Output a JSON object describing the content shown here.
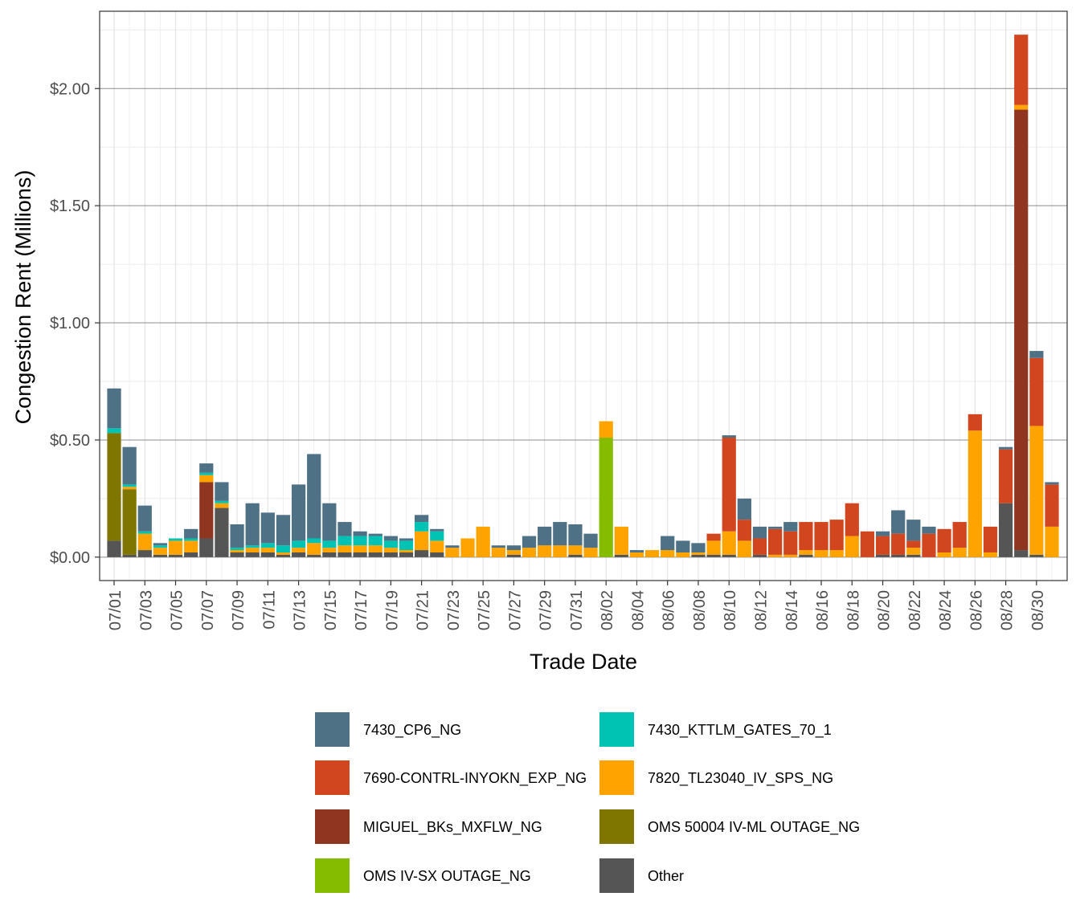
{
  "chart_data": {
    "type": "bar",
    "stacked": true,
    "xlabel": "Trade Date",
    "ylabel": "Congestion Rent (Millions)",
    "ylim": [
      -0.1,
      2.33
    ],
    "yticks": [
      0,
      0.5,
      1.0,
      1.5,
      2.0
    ],
    "ytick_labels": [
      "$0.00",
      "$0.50",
      "$1.00",
      "$1.50",
      "$2.00"
    ],
    "xtick_labels": [
      "07/01",
      "07/03",
      "07/05",
      "07/07",
      "07/09",
      "07/11",
      "07/13",
      "07/15",
      "07/17",
      "07/19",
      "07/21",
      "07/23",
      "07/25",
      "07/27",
      "07/29",
      "07/31",
      "08/02",
      "08/04",
      "08/06",
      "08/08",
      "08/10",
      "08/12",
      "08/14",
      "08/16",
      "08/18",
      "08/20",
      "08/22",
      "08/24",
      "08/26",
      "08/28",
      "08/30"
    ],
    "categories": [
      "07/01",
      "07/02",
      "07/03",
      "07/04",
      "07/05",
      "07/06",
      "07/07",
      "07/08",
      "07/09",
      "07/10",
      "07/11",
      "07/12",
      "07/13",
      "07/14",
      "07/15",
      "07/16",
      "07/17",
      "07/18",
      "07/19",
      "07/20",
      "07/21",
      "07/22",
      "07/23",
      "07/24",
      "07/25",
      "07/26",
      "07/27",
      "07/28",
      "07/29",
      "07/30",
      "07/31",
      "08/01",
      "08/02",
      "08/03",
      "08/04",
      "08/05",
      "08/06",
      "08/07",
      "08/08",
      "08/09",
      "08/10",
      "08/11",
      "08/12",
      "08/13",
      "08/14",
      "08/15",
      "08/16",
      "08/17",
      "08/18",
      "08/19",
      "08/20",
      "08/21",
      "08/22",
      "08/23",
      "08/24",
      "08/25",
      "08/26",
      "08/27",
      "08/28",
      "08/29",
      "08/30",
      "08/31"
    ],
    "legend_position": "bottom",
    "grid": true,
    "series": [
      {
        "name": "Other",
        "color": "#555555",
        "values": [
          0.07,
          0.01,
          0.03,
          0.01,
          0.01,
          0.02,
          0.08,
          0.21,
          0.02,
          0.02,
          0.02,
          0.01,
          0.02,
          0.01,
          0.02,
          0.02,
          0.02,
          0.02,
          0.02,
          0.02,
          0.03,
          0.02,
          0.0,
          0.0,
          0.0,
          0.0,
          0.01,
          0.0,
          0.0,
          0.0,
          0.01,
          0.0,
          0.0,
          0.01,
          0.0,
          0.0,
          0.0,
          0.0,
          0.01,
          0.01,
          0.01,
          0.0,
          0.01,
          0.0,
          0.0,
          0.01,
          0.0,
          0.0,
          0.0,
          0.0,
          0.01,
          0.01,
          0.01,
          0.0,
          0.0,
          0.0,
          0.0,
          0.0,
          0.23,
          0.03,
          0.01,
          0.0
        ]
      },
      {
        "name": "OMS 50004 IV-ML OUTAGE_NG",
        "color": "#7f7600",
        "values": [
          0.46,
          0.28,
          0.0,
          0.0,
          0.0,
          0.0,
          0.0,
          0.0,
          0.0,
          0.0,
          0.0,
          0.0,
          0.0,
          0.0,
          0.0,
          0.0,
          0.0,
          0.0,
          0.0,
          0.0,
          0.0,
          0.0,
          0.0,
          0.0,
          0.0,
          0.0,
          0.0,
          0.0,
          0.0,
          0.0,
          0.0,
          0.0,
          0.0,
          0.0,
          0.0,
          0.0,
          0.0,
          0.0,
          0.0,
          0.0,
          0.0,
          0.0,
          0.0,
          0.0,
          0.0,
          0.0,
          0.0,
          0.0,
          0.0,
          0.0,
          0.0,
          0.0,
          0.0,
          0.0,
          0.0,
          0.0,
          0.0,
          0.0,
          0.0,
          0.0,
          0.0,
          0.0
        ]
      },
      {
        "name": "OMS IV-SX OUTAGE_NG",
        "color": "#86bc00",
        "values": [
          0.0,
          0.0,
          0.0,
          0.0,
          0.0,
          0.0,
          0.0,
          0.0,
          0.0,
          0.0,
          0.0,
          0.0,
          0.0,
          0.0,
          0.0,
          0.0,
          0.0,
          0.0,
          0.0,
          0.0,
          0.0,
          0.0,
          0.0,
          0.0,
          0.0,
          0.0,
          0.0,
          0.0,
          0.0,
          0.0,
          0.0,
          0.0,
          0.51,
          0.0,
          0.0,
          0.0,
          0.0,
          0.0,
          0.0,
          0.0,
          0.0,
          0.0,
          0.0,
          0.0,
          0.0,
          0.0,
          0.0,
          0.0,
          0.0,
          0.0,
          0.0,
          0.0,
          0.0,
          0.0,
          0.0,
          0.0,
          0.0,
          0.0,
          0.0,
          0.0,
          0.0,
          0.0
        ]
      },
      {
        "name": "MIGUEL_BKs_MXFLW_NG",
        "color": "#8f3520",
        "values": [
          0.0,
          0.0,
          0.0,
          0.0,
          0.0,
          0.0,
          0.24,
          0.0,
          0.0,
          0.0,
          0.0,
          0.0,
          0.0,
          0.0,
          0.0,
          0.0,
          0.0,
          0.0,
          0.0,
          0.0,
          0.0,
          0.0,
          0.0,
          0.0,
          0.0,
          0.0,
          0.0,
          0.0,
          0.0,
          0.0,
          0.0,
          0.0,
          0.0,
          0.0,
          0.0,
          0.0,
          0.0,
          0.0,
          0.0,
          0.0,
          0.0,
          0.0,
          0.0,
          0.0,
          0.0,
          0.0,
          0.0,
          0.0,
          0.0,
          0.0,
          0.0,
          0.0,
          0.0,
          0.0,
          0.0,
          0.0,
          0.0,
          0.0,
          0.0,
          1.88,
          0.0,
          0.0
        ]
      },
      {
        "name": "7820_TL23040_IV_SPS_NG",
        "color": "#ffa300",
        "values": [
          0.0,
          0.01,
          0.07,
          0.03,
          0.06,
          0.05,
          0.03,
          0.02,
          0.01,
          0.02,
          0.02,
          0.01,
          0.02,
          0.05,
          0.02,
          0.03,
          0.03,
          0.03,
          0.02,
          0.01,
          0.08,
          0.05,
          0.04,
          0.08,
          0.13,
          0.04,
          0.02,
          0.04,
          0.05,
          0.05,
          0.04,
          0.04,
          0.07,
          0.12,
          0.02,
          0.03,
          0.03,
          0.02,
          0.01,
          0.06,
          0.1,
          0.07,
          0.0,
          0.01,
          0.01,
          0.02,
          0.03,
          0.03,
          0.09,
          0.0,
          0.0,
          0.0,
          0.03,
          0.0,
          0.02,
          0.04,
          0.54,
          0.02,
          0.0,
          0.02,
          0.55,
          0.13
        ]
      },
      {
        "name": "7690-CONTRL-INYOKN_EXP_NG",
        "color": "#d1461f",
        "values": [
          0.0,
          0.0,
          0.0,
          0.0,
          0.0,
          0.0,
          0.0,
          0.0,
          0.0,
          0.0,
          0.0,
          0.0,
          0.0,
          0.0,
          0.0,
          0.0,
          0.0,
          0.0,
          0.0,
          0.0,
          0.0,
          0.0,
          0.0,
          0.0,
          0.0,
          0.0,
          0.0,
          0.0,
          0.0,
          0.0,
          0.0,
          0.0,
          0.0,
          0.0,
          0.0,
          0.0,
          0.0,
          0.0,
          0.0,
          0.03,
          0.4,
          0.09,
          0.07,
          0.11,
          0.1,
          0.12,
          0.12,
          0.13,
          0.14,
          0.11,
          0.08,
          0.09,
          0.03,
          0.1,
          0.1,
          0.11,
          0.07,
          0.11,
          0.23,
          0.3,
          0.29,
          0.18
        ]
      },
      {
        "name": "7430_KTTLM_GATES_70_1",
        "color": "#00c3b3",
        "values": [
          0.02,
          0.01,
          0.01,
          0.01,
          0.01,
          0.01,
          0.01,
          0.01,
          0.01,
          0.01,
          0.02,
          0.03,
          0.03,
          0.02,
          0.03,
          0.04,
          0.04,
          0.04,
          0.03,
          0.04,
          0.04,
          0.04,
          0.0,
          0.0,
          0.0,
          0.0,
          0.0,
          0.0,
          0.0,
          0.0,
          0.0,
          0.0,
          0.0,
          0.0,
          0.0,
          0.0,
          0.0,
          0.0,
          0.0,
          0.0,
          0.0,
          0.0,
          0.0,
          0.0,
          0.0,
          0.0,
          0.0,
          0.0,
          0.0,
          0.0,
          0.0,
          0.0,
          0.0,
          0.0,
          0.0,
          0.0,
          0.0,
          0.0,
          0.0,
          0.0,
          0.0,
          0.0
        ]
      },
      {
        "name": "7430_CP6_NG",
        "color": "#4f7185",
        "values": [
          0.17,
          0.16,
          0.11,
          0.01,
          0.0,
          0.04,
          0.04,
          0.08,
          0.1,
          0.18,
          0.13,
          0.13,
          0.24,
          0.36,
          0.16,
          0.06,
          0.02,
          0.01,
          0.02,
          0.01,
          0.03,
          0.01,
          0.01,
          0.0,
          0.0,
          0.01,
          0.02,
          0.05,
          0.08,
          0.1,
          0.09,
          0.06,
          0.0,
          0.0,
          0.01,
          0.0,
          0.06,
          0.05,
          0.04,
          0.0,
          0.01,
          0.09,
          0.05,
          0.01,
          0.04,
          0.0,
          0.0,
          0.0,
          0.0,
          0.0,
          0.02,
          0.1,
          0.09,
          0.03,
          0.0,
          0.0,
          0.0,
          0.0,
          0.01,
          0.0,
          0.03,
          0.01
        ]
      }
    ],
    "legend_order": [
      "7430_CP6_NG",
      "7430_KTTLM_GATES_70_1",
      "7690-CONTRL-INYOKN_EXP_NG",
      "7820_TL23040_IV_SPS_NG",
      "MIGUEL_BKs_MXFLW_NG",
      "OMS 50004 IV-ML OUTAGE_NG",
      "OMS IV-SX OUTAGE_NG",
      "Other"
    ]
  }
}
